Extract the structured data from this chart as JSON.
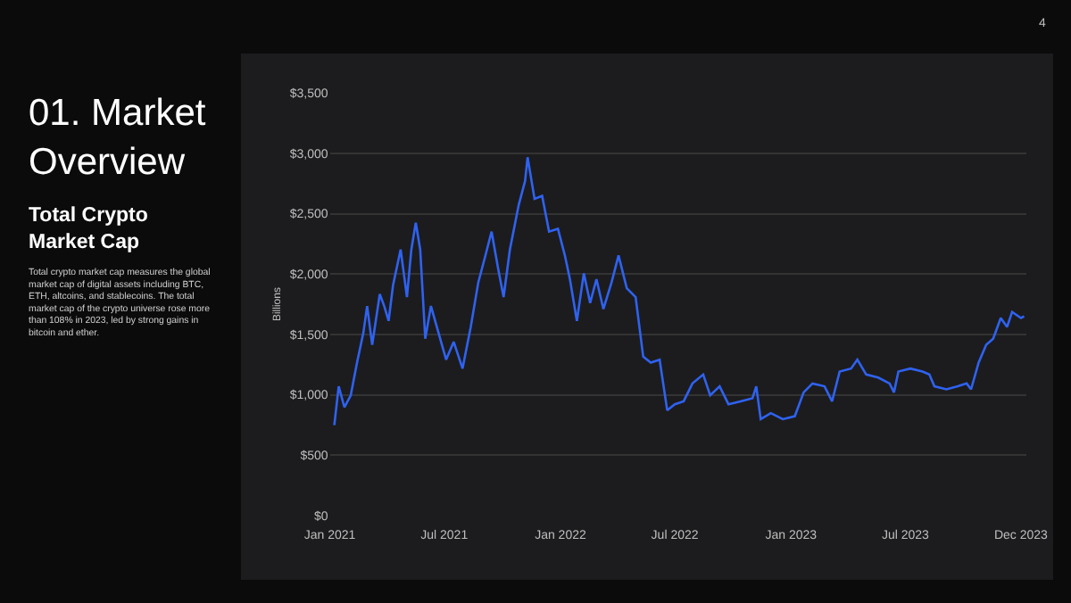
{
  "chart_data": {
    "type": "line",
    "title": "01. Market Overview",
    "subtitle": "Total Crypto Market Cap",
    "ylabel": "Billions",
    "annotations": [
      "Total crypto market cap measures the global market cap of digital assets including BTC, ETH, altcoins, and stablecoins. The total market cap of the crypto universe rose more than 108% in 2023, led by strong gains in bitcoin and ether.",
      "4"
    ],
    "x": [
      "2021-01-08",
      "2021-01-15",
      "2021-01-24",
      "2021-02-03",
      "2021-02-13",
      "2021-02-23",
      "2021-03-01",
      "2021-03-09",
      "2021-03-21",
      "2021-03-28",
      "2021-04-04",
      "2021-04-11",
      "2021-04-23",
      "2021-05-03",
      "2021-05-10",
      "2021-05-17",
      "2021-05-24",
      "2021-06-01",
      "2021-06-10",
      "2021-06-22",
      "2021-07-04",
      "2021-07-16",
      "2021-07-30",
      "2021-08-12",
      "2021-08-24",
      "2021-09-03",
      "2021-09-14",
      "2021-09-24",
      "2021-10-03",
      "2021-10-13",
      "2021-10-27",
      "2021-11-06",
      "2021-11-10",
      "2021-11-21",
      "2021-12-03",
      "2021-12-14",
      "2021-12-28",
      "2022-01-08",
      "2022-01-16",
      "2022-01-27",
      "2022-02-07",
      "2022-02-17",
      "2022-02-27",
      "2022-03-10",
      "2022-03-23",
      "2022-04-03",
      "2022-04-16",
      "2022-04-30",
      "2022-05-12",
      "2022-05-24",
      "2022-06-07",
      "2022-06-19",
      "2022-07-01",
      "2022-07-15",
      "2022-07-29",
      "2022-08-15",
      "2022-08-26",
      "2022-09-10",
      "2022-09-24",
      "2022-10-13",
      "2022-11-01",
      "2022-11-07",
      "2022-11-14",
      "2022-11-30",
      "2022-12-19",
      "2023-01-07",
      "2023-01-21",
      "2023-02-04",
      "2023-02-23",
      "2023-03-07",
      "2023-03-19",
      "2023-04-06",
      "2023-04-16",
      "2023-04-30",
      "2023-05-19",
      "2023-06-06",
      "2023-06-13",
      "2023-06-20",
      "2023-07-09",
      "2023-07-28",
      "2023-08-08",
      "2023-08-16",
      "2023-09-04",
      "2023-09-22",
      "2023-10-06",
      "2023-10-13",
      "2023-10-25",
      "2023-11-06",
      "2023-11-17",
      "2023-11-29",
      "2023-12-09",
      "2023-12-17",
      "2023-12-31",
      "2024-01-05"
    ],
    "series": [
      {
        "color": "#2f62f0",
        "values": [
          749,
          1070,
          897,
          995,
          1267,
          1513,
          1735,
          1414,
          1833,
          1735,
          1612,
          1907,
          2203,
          1809,
          2203,
          2425,
          2203,
          1464,
          1735,
          1513,
          1291,
          1439,
          1217,
          1562,
          1932,
          2129,
          2351,
          2055,
          1809,
          2203,
          2573,
          2770,
          2967,
          2622,
          2647,
          2351,
          2375,
          2154,
          1957,
          1612,
          2006,
          1760,
          1957,
          1710,
          1932,
          2154,
          1883,
          1809,
          1316,
          1267,
          1291,
          872,
          922,
          946,
          1094,
          1168,
          995,
          1070,
          922,
          946,
          971,
          1070,
          798,
          848,
          798,
          823,
          1020,
          1094,
          1070,
          946,
          1193,
          1217,
          1291,
          1168,
          1143,
          1094,
          1020,
          1193,
          1217,
          1193,
          1168,
          1070,
          1045,
          1070,
          1094,
          1045,
          1267,
          1414,
          1464,
          1636,
          1562,
          1686,
          1636,
          1650
        ]
      }
    ],
    "xlim": [
      "2021-01-01",
      "2024-01-08"
    ],
    "xticks": [
      {
        "value": "2021-01-01",
        "label": "Jan 2021"
      },
      {
        "value": "2021-07-01",
        "label": "Jul 2021"
      },
      {
        "value": "2022-01-01",
        "label": "Jan 2022"
      },
      {
        "value": "2022-07-01",
        "label": "Jul 2022"
      },
      {
        "value": "2023-01-01",
        "label": "Jan 2023"
      },
      {
        "value": "2023-07-01",
        "label": "Jul 2023"
      },
      {
        "value": "2023-12-31",
        "label": "Dec 2023"
      }
    ],
    "ylim": [
      0,
      3500
    ],
    "yticks": [
      {
        "value": 0,
        "label": "$0"
      },
      {
        "value": 500,
        "label": "$500"
      },
      {
        "value": 1000,
        "label": "$1,000"
      },
      {
        "value": 1500,
        "label": "$1,500"
      },
      {
        "value": 2000,
        "label": "$2,000"
      },
      {
        "value": 2500,
        "label": "$2,500"
      },
      {
        "value": 3000,
        "label": "$3,000"
      },
      {
        "value": 3500,
        "label": "$3,500"
      }
    ],
    "grid": "y",
    "marker": "none",
    "line_style": "solid"
  }
}
